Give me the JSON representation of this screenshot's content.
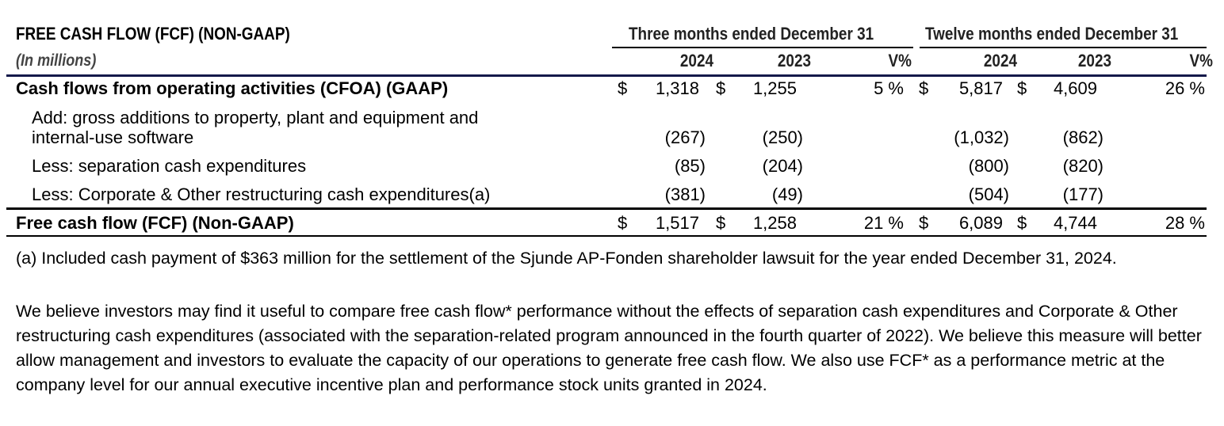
{
  "table": {
    "title": "FREE CASH FLOW (FCF) (NON-GAAP)",
    "units": "(In millions)",
    "period_headers": [
      "Three months ended December 31",
      "Twelve months ended December 31"
    ],
    "column_headers": [
      "2024",
      "2023",
      "V%",
      "2024",
      "2023",
      "V%"
    ],
    "rows": [
      {
        "label": "Cash flows from operating activities (CFOA) (GAAP)",
        "bold": true,
        "dollar": true,
        "values": [
          "1,318",
          "1,255",
          "5 %",
          "5,817",
          "4,609",
          "26 %"
        ]
      },
      {
        "label": "Add: gross additions to property, plant and equipment and",
        "label2": "internal-use software",
        "values": [
          "(267)",
          "(250)",
          "",
          "(1,032)",
          "(862)",
          ""
        ]
      },
      {
        "label": "Less: separation cash expenditures",
        "values": [
          "(85)",
          "(204)",
          "",
          "(800)",
          "(820)",
          ""
        ]
      },
      {
        "label": "Less: Corporate & Other restructuring cash expenditures(a)",
        "values": [
          "(381)",
          "(49)",
          "",
          "(504)",
          "(177)",
          ""
        ]
      },
      {
        "label": "Free cash flow (FCF) (Non-GAAP)",
        "bold": true,
        "dollar": true,
        "values": [
          "1,517",
          "1,258",
          "21 %",
          "6,089",
          "4,744",
          "28 %"
        ]
      }
    ],
    "currency_symbol": "$"
  },
  "footnote": "(a) Included cash payment of $363 million for the settlement of the Sjunde AP-Fonden shareholder lawsuit for the year ended December 31, 2024.",
  "paragraph": "We believe investors may find it useful to compare free cash flow* performance without the effects of separation cash expenditures and Corporate & Other restructuring cash expenditures (associated with the separation-related program announced in the fourth quarter of 2022). We believe this measure will better allow management and investors to evaluate the capacity of our operations to generate free cash flow. We also use FCF* as a performance metric at the company level for our annual executive incentive plan and performance stock units granted in 2024."
}
